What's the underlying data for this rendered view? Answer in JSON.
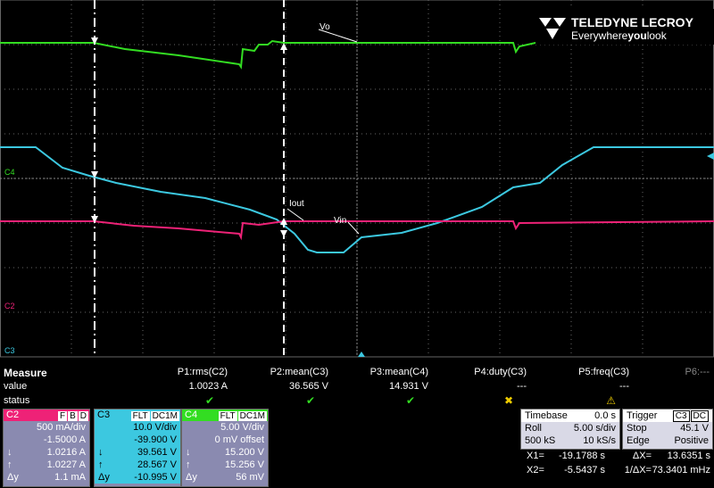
{
  "brand": {
    "name": "TELEDYNE LECROY",
    "tagline": "Everywhere",
    "tagline_bold": "you",
    "tagline_end": "look"
  },
  "trace_labels": {
    "vo": "Vo",
    "iout": "Iout",
    "vin": "Vin"
  },
  "channel_markers": {
    "c4": "C4",
    "c2": "C2",
    "c3": "C3"
  },
  "measure": {
    "title": "Measure",
    "row_labels": [
      "value",
      "status"
    ],
    "params": [
      {
        "name": "P1:rms(C2)",
        "value": "1.0023 A",
        "status": "✔"
      },
      {
        "name": "P2:mean(C3)",
        "value": "36.565 V",
        "status": "✔"
      },
      {
        "name": "P3:mean(C4)",
        "value": "14.931 V",
        "status": "✔"
      },
      {
        "name": "P4:duty(C3)",
        "value": "---",
        "status": "✖"
      },
      {
        "name": "P5:freq(C3)",
        "value": "---",
        "status": "⚠"
      },
      {
        "name": "P6:---",
        "value": "",
        "status": ""
      }
    ]
  },
  "channels": [
    {
      "name": "C2",
      "flags": [
        "F",
        "B",
        "D"
      ],
      "rows": [
        [
          "",
          "500 mA/div"
        ],
        [
          "",
          "-1.5000 A"
        ],
        [
          "↓",
          "1.0216 A"
        ],
        [
          "↑",
          "1.0227 A"
        ],
        [
          "Δy",
          "1.1 mA"
        ]
      ]
    },
    {
      "name": "C3",
      "flags": [
        "FLT",
        "DC1M"
      ],
      "rows": [
        [
          "",
          "10.0 V/div"
        ],
        [
          "",
          "-39.900 V"
        ],
        [
          "↓",
          "39.561 V"
        ],
        [
          "↑",
          "28.567 V"
        ],
        [
          "Δy",
          "-10.995 V"
        ]
      ]
    },
    {
      "name": "C4",
      "flags": [
        "FLT",
        "DC1M"
      ],
      "rows": [
        [
          "",
          "5.00 V/div"
        ],
        [
          "",
          "0 mV offset"
        ],
        [
          "↓",
          "15.200 V"
        ],
        [
          "↑",
          "15.256 V"
        ],
        [
          "Δy",
          "56 mV"
        ]
      ]
    }
  ],
  "timebase": {
    "rows": [
      [
        "Timebase",
        "0.0 s"
      ],
      [
        "Roll",
        "5.00 s/div"
      ],
      [
        "500 kS",
        "10 kS/s"
      ]
    ]
  },
  "trigger": {
    "title": "Trigger",
    "flags": [
      "C3",
      "DC"
    ],
    "rows": [
      [
        "Stop",
        "45.1 V"
      ],
      [
        "Edge",
        "Positive"
      ]
    ]
  },
  "cursors": [
    [
      "X1=",
      "-19.1788 s",
      "ΔX=",
      "13.6351 s"
    ],
    [
      "X2=",
      "-5.5437 s",
      "1/ΔX=",
      "73.3401 mHz"
    ]
  ]
}
